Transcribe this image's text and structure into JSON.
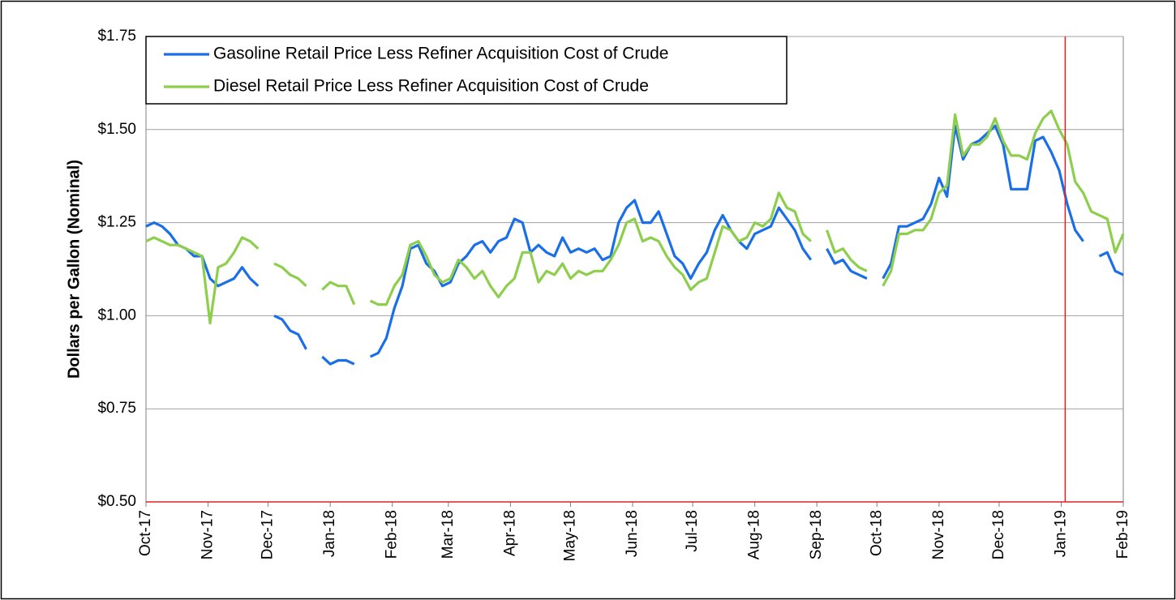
{
  "chart_data": {
    "type": "line",
    "ylabel": "Dollars per Gallon (Nominal)",
    "xlim": [
      0,
      488
    ],
    "xticks": [
      {
        "value": 0,
        "label": "Oct-17"
      },
      {
        "value": 31,
        "label": "Nov-17"
      },
      {
        "value": 61,
        "label": "Dec-17"
      },
      {
        "value": 92,
        "label": "Jan-18"
      },
      {
        "value": 123,
        "label": "Feb-18"
      },
      {
        "value": 151,
        "label": "Mar-18"
      },
      {
        "value": 182,
        "label": "Apr-18"
      },
      {
        "value": 212,
        "label": "May-18"
      },
      {
        "value": 243,
        "label": "Jun-18"
      },
      {
        "value": 273,
        "label": "Jul-18"
      },
      {
        "value": 304,
        "label": "Aug-18"
      },
      {
        "value": 335,
        "label": "Sep-18"
      },
      {
        "value": 365,
        "label": "Oct-18"
      },
      {
        "value": 396,
        "label": "Nov-18"
      },
      {
        "value": 426,
        "label": "Dec-18"
      },
      {
        "value": 457,
        "label": "Jan-19"
      },
      {
        "value": 488,
        "label": "Feb-19"
      }
    ],
    "ylim": [
      0.5,
      1.75
    ],
    "yticks": [
      {
        "value": 0.5,
        "label": "$0.50"
      },
      {
        "value": 0.75,
        "label": "$0.75"
      },
      {
        "value": 1,
        "label": "$1.00"
      },
      {
        "value": 1.25,
        "label": "$1.25"
      },
      {
        "value": 1.5,
        "label": "$1.50"
      },
      {
        "value": 1.75,
        "label": "$1.75"
      }
    ],
    "grid": true,
    "legend": "top-left",
    "vline": 459,
    "vline_color": "#e02020",
    "x": [
      0,
      4,
      8,
      12,
      16,
      20,
      24,
      28,
      32,
      36,
      40,
      44,
      48,
      52,
      56,
      60,
      64,
      68,
      72,
      76,
      80,
      84,
      88,
      92,
      96,
      100,
      104,
      108,
      112,
      116,
      120,
      124,
      128,
      132,
      136,
      140,
      144,
      148,
      152,
      156,
      160,
      164,
      168,
      172,
      176,
      180,
      184,
      188,
      192,
      196,
      200,
      204,
      208,
      212,
      216,
      220,
      224,
      228,
      232,
      236,
      240,
      244,
      248,
      252,
      256,
      260,
      264,
      268,
      272,
      276,
      280,
      284,
      288,
      292,
      296,
      300,
      304,
      308,
      312,
      316,
      320,
      324,
      328,
      332,
      336,
      340,
      344,
      348,
      352,
      356,
      360,
      364,
      368,
      372,
      376,
      380,
      384,
      388,
      392,
      396,
      400,
      404,
      408,
      412,
      416,
      420,
      424,
      428,
      432,
      436,
      440,
      444,
      448,
      452,
      456,
      460,
      464,
      468,
      472,
      476,
      480,
      484,
      488
    ],
    "series": [
      {
        "name": "Gasoline Retail Price Less Refiner Acquisition Cost of Crude",
        "color": "#1a6fe8",
        "values": [
          1.24,
          1.25,
          1.24,
          1.22,
          1.19,
          1.18,
          1.16,
          1.16,
          1.1,
          1.08,
          1.09,
          1.1,
          1.13,
          1.1,
          1.08,
          null,
          1.0,
          0.99,
          0.96,
          0.95,
          0.91,
          null,
          0.89,
          0.87,
          0.88,
          0.88,
          0.87,
          null,
          0.89,
          0.9,
          0.94,
          1.02,
          1.08,
          1.18,
          1.19,
          1.14,
          1.12,
          1.08,
          1.09,
          1.14,
          1.16,
          1.19,
          1.2,
          1.17,
          1.2,
          1.21,
          1.26,
          1.25,
          1.17,
          1.19,
          1.17,
          1.16,
          1.21,
          1.17,
          1.18,
          1.17,
          1.18,
          1.15,
          1.16,
          1.25,
          1.29,
          1.31,
          1.25,
          1.25,
          1.28,
          1.22,
          1.16,
          1.14,
          1.1,
          1.14,
          1.17,
          1.23,
          1.27,
          1.23,
          1.2,
          1.18,
          1.22,
          1.23,
          1.24,
          1.29,
          1.26,
          1.23,
          1.18,
          1.15,
          null,
          1.18,
          1.14,
          1.15,
          1.12,
          1.11,
          1.1,
          null,
          1.1,
          1.14,
          1.24,
          1.24,
          1.25,
          1.26,
          1.3,
          1.37,
          1.32,
          1.51,
          1.42,
          1.46,
          1.47,
          1.49,
          1.51,
          1.46,
          1.34,
          1.34,
          1.34,
          1.47,
          1.48,
          1.44,
          1.39,
          1.3,
          1.23,
          1.2,
          null,
          1.16,
          1.17,
          1.12,
          1.11
        ]
      },
      {
        "name": "Diesel Retail Price Less Refiner Acquisition Cost of Crude",
        "color": "#8dce4d",
        "values": [
          1.2,
          1.21,
          1.2,
          1.19,
          1.19,
          1.18,
          1.17,
          1.16,
          0.98,
          1.13,
          1.14,
          1.17,
          1.21,
          1.2,
          1.18,
          null,
          1.14,
          1.13,
          1.11,
          1.1,
          1.08,
          null,
          1.07,
          1.09,
          1.08,
          1.08,
          1.03,
          null,
          1.04,
          1.03,
          1.03,
          1.08,
          1.11,
          1.19,
          1.2,
          1.16,
          1.11,
          1.09,
          1.1,
          1.15,
          1.13,
          1.1,
          1.12,
          1.08,
          1.05,
          1.08,
          1.1,
          1.17,
          1.17,
          1.09,
          1.12,
          1.11,
          1.14,
          1.1,
          1.12,
          1.11,
          1.12,
          1.12,
          1.15,
          1.19,
          1.25,
          1.26,
          1.2,
          1.21,
          1.2,
          1.16,
          1.13,
          1.11,
          1.07,
          1.09,
          1.1,
          1.17,
          1.24,
          1.23,
          1.2,
          1.21,
          1.25,
          1.24,
          1.26,
          1.33,
          1.29,
          1.28,
          1.22,
          1.2,
          null,
          1.23,
          1.17,
          1.18,
          1.15,
          1.13,
          1.12,
          null,
          1.08,
          1.12,
          1.22,
          1.22,
          1.23,
          1.23,
          1.26,
          1.33,
          1.35,
          1.54,
          1.43,
          1.46,
          1.46,
          1.48,
          1.53,
          1.47,
          1.43,
          1.43,
          1.42,
          1.49,
          1.53,
          1.55,
          1.5,
          1.46,
          1.36,
          1.33,
          1.28,
          1.27,
          1.26,
          1.17,
          1.22
        ]
      }
    ]
  }
}
